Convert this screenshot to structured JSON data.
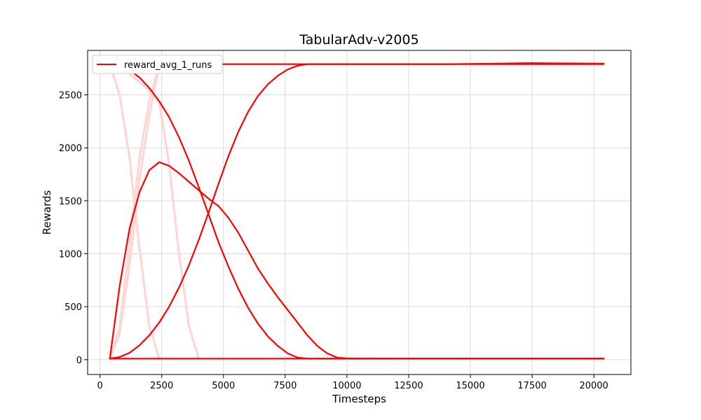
{
  "chart_data": {
    "type": "line",
    "title": "TabularAdv-v2005",
    "xlabel": "Timesteps",
    "ylabel": "Rewards",
    "xlim": [
      -500,
      21500
    ],
    "ylim": [
      -140,
      2920
    ],
    "x_ticks": [
      0,
      2500,
      5000,
      7500,
      10000,
      12500,
      15000,
      17500,
      20000
    ],
    "y_ticks": [
      0,
      500,
      1000,
      1500,
      2000,
      2500
    ],
    "x_tick_labels": [
      "0",
      "2500",
      "5000",
      "7500",
      "10000",
      "12500",
      "15000",
      "17500",
      "20000"
    ],
    "y_tick_labels": [
      "0",
      "500",
      "1000",
      "1500",
      "2000",
      "2500"
    ],
    "grid": true,
    "legend": {
      "placement": "top-left",
      "entries": [
        "reward_avg_1_runs"
      ]
    },
    "colors": {
      "main": "#ff0000",
      "faded": "#ffd6d6"
    },
    "series": [
      {
        "name": "reward_avg_1_runs",
        "style": "main",
        "x": [
          400,
          800,
          1200,
          1600,
          2000,
          2400,
          2800,
          3200,
          3600,
          4000,
          4400,
          4800,
          5200,
          5600,
          6000,
          6400,
          6800,
          7200,
          7600,
          8000,
          8400,
          8800,
          9200,
          9600,
          10000,
          12000,
          14000,
          16000,
          18000,
          20400
        ],
        "y": [
          10,
          700,
          1240,
          1580,
          1790,
          1865,
          1830,
          1760,
          1680,
          1600,
          1520,
          1450,
          1340,
          1200,
          1030,
          860,
          720,
          590,
          470,
          350,
          230,
          130,
          60,
          20,
          12,
          10,
          10,
          10,
          10,
          10
        ]
      },
      {
        "style": "main",
        "x": [
          400,
          800,
          1200,
          1600,
          2000,
          2400,
          2800,
          3200,
          3600,
          4000,
          4400,
          4800,
          5200,
          5600,
          6000,
          6400,
          6800,
          7200,
          7600,
          8000,
          8400,
          10000,
          12000,
          14000,
          16000,
          17500,
          20400
        ],
        "y": [
          10,
          25,
          65,
          135,
          230,
          350,
          500,
          680,
          890,
          1130,
          1390,
          1660,
          1920,
          2150,
          2340,
          2490,
          2600,
          2680,
          2740,
          2775,
          2790,
          2790,
          2790,
          2790,
          2795,
          2800,
          2795
        ]
      },
      {
        "style": "main",
        "x": [
          400,
          800,
          1200,
          1600,
          2000,
          2400,
          2800,
          3200,
          3600,
          4000,
          4400,
          4800,
          5200,
          5600,
          6000,
          6400,
          6800,
          7200,
          7600,
          8000,
          8400,
          8800,
          10000,
          12000,
          16000,
          20400
        ],
        "y": [
          2790,
          2775,
          2735,
          2665,
          2565,
          2440,
          2290,
          2100,
          1880,
          1630,
          1370,
          1110,
          880,
          670,
          490,
          340,
          220,
          130,
          60,
          20,
          10,
          10,
          10,
          10,
          10,
          10
        ]
      },
      {
        "style": "main",
        "x": [
          400,
          2000,
          5000,
          10000,
          15000,
          20400
        ],
        "y": [
          10,
          10,
          10,
          10,
          10,
          10
        ]
      },
      {
        "style": "main",
        "x": [
          400,
          1500,
          2500,
          5000,
          10000,
          15000,
          20400
        ],
        "y": [
          2790,
          2790,
          2790,
          2790,
          2790,
          2790,
          2790
        ]
      },
      {
        "style": "faded",
        "x": [
          400,
          800,
          1200,
          1600,
          2000,
          2400
        ],
        "y": [
          2790,
          2500,
          1900,
          1050,
          320,
          10
        ]
      },
      {
        "style": "faded",
        "x": [
          400,
          800,
          1200,
          1600,
          2000,
          2400,
          2800,
          3200,
          3600,
          4000
        ],
        "y": [
          2790,
          2760,
          2700,
          2620,
          2540,
          2430,
          1850,
          1000,
          320,
          10
        ]
      },
      {
        "style": "faded",
        "x": [
          400,
          800,
          1200,
          1600,
          2000,
          2400
        ],
        "y": [
          10,
          300,
          1100,
          1900,
          2450,
          2790
        ]
      },
      {
        "style": "faded",
        "x": [
          400,
          800,
          1200,
          1600,
          2000,
          2400
        ],
        "y": [
          10,
          250,
          900,
          1700,
          2300,
          2790
        ]
      }
    ]
  }
}
